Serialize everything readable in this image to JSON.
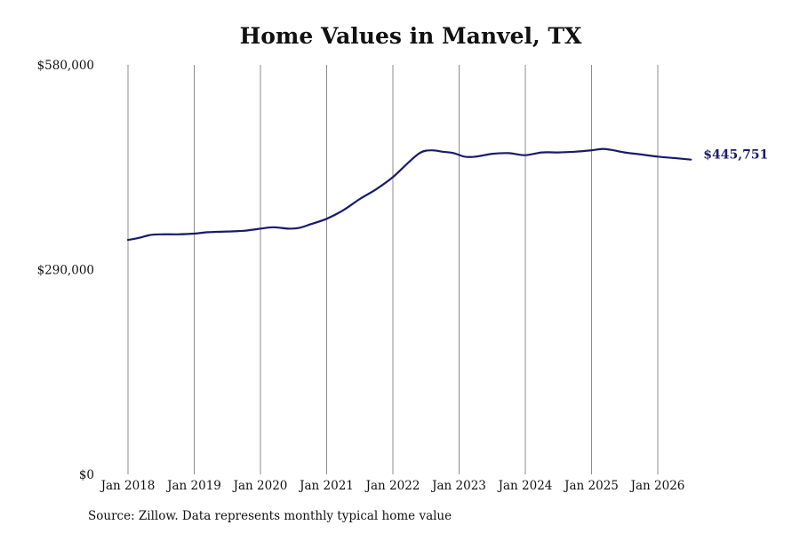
{
  "chart_data": {
    "type": "line",
    "title": "Home Values in Manvel, TX",
    "source": "Source: Zillow. Data represents monthly typical home value",
    "ylim": [
      0,
      580000
    ],
    "y_ticks": [
      "$0",
      "$290,000",
      "$580,000"
    ],
    "x_ticks": [
      "Jan 2018",
      "Jan 2019",
      "Jan 2020",
      "Jan 2021",
      "Jan 2022",
      "Jan 2023",
      "Jan 2024",
      "Jan 2025",
      "Jan 2026"
    ],
    "grid": "vertical",
    "line_color": "#1a1a6e",
    "end_label": "$445,751",
    "series": [
      {
        "values": [
          [
            2018.0,
            332000
          ],
          [
            2018.17,
            335000
          ],
          [
            2018.33,
            339000
          ],
          [
            2018.5,
            340000
          ],
          [
            2018.75,
            340000
          ],
          [
            2019.0,
            341000
          ],
          [
            2019.2,
            343000
          ],
          [
            2019.5,
            344000
          ],
          [
            2019.75,
            345000
          ],
          [
            2020.0,
            348000
          ],
          [
            2020.2,
            350000
          ],
          [
            2020.42,
            348000
          ],
          [
            2020.58,
            349000
          ],
          [
            2020.75,
            354000
          ],
          [
            2021.0,
            362000
          ],
          [
            2021.25,
            374000
          ],
          [
            2021.5,
            390000
          ],
          [
            2021.75,
            404000
          ],
          [
            2022.0,
            421000
          ],
          [
            2022.25,
            443000
          ],
          [
            2022.42,
            456000
          ],
          [
            2022.58,
            459000
          ],
          [
            2022.75,
            457000
          ],
          [
            2022.92,
            455000
          ],
          [
            2023.08,
            450000
          ],
          [
            2023.25,
            450000
          ],
          [
            2023.5,
            454000
          ],
          [
            2023.75,
            455000
          ],
          [
            2024.0,
            452000
          ],
          [
            2024.25,
            456000
          ],
          [
            2024.5,
            456000
          ],
          [
            2024.75,
            457000
          ],
          [
            2025.0,
            459000
          ],
          [
            2025.17,
            461000
          ],
          [
            2025.33,
            459000
          ],
          [
            2025.5,
            456000
          ],
          [
            2025.75,
            453000
          ],
          [
            2026.0,
            450000
          ],
          [
            2026.25,
            448000
          ],
          [
            2026.5,
            445751
          ]
        ]
      }
    ]
  }
}
